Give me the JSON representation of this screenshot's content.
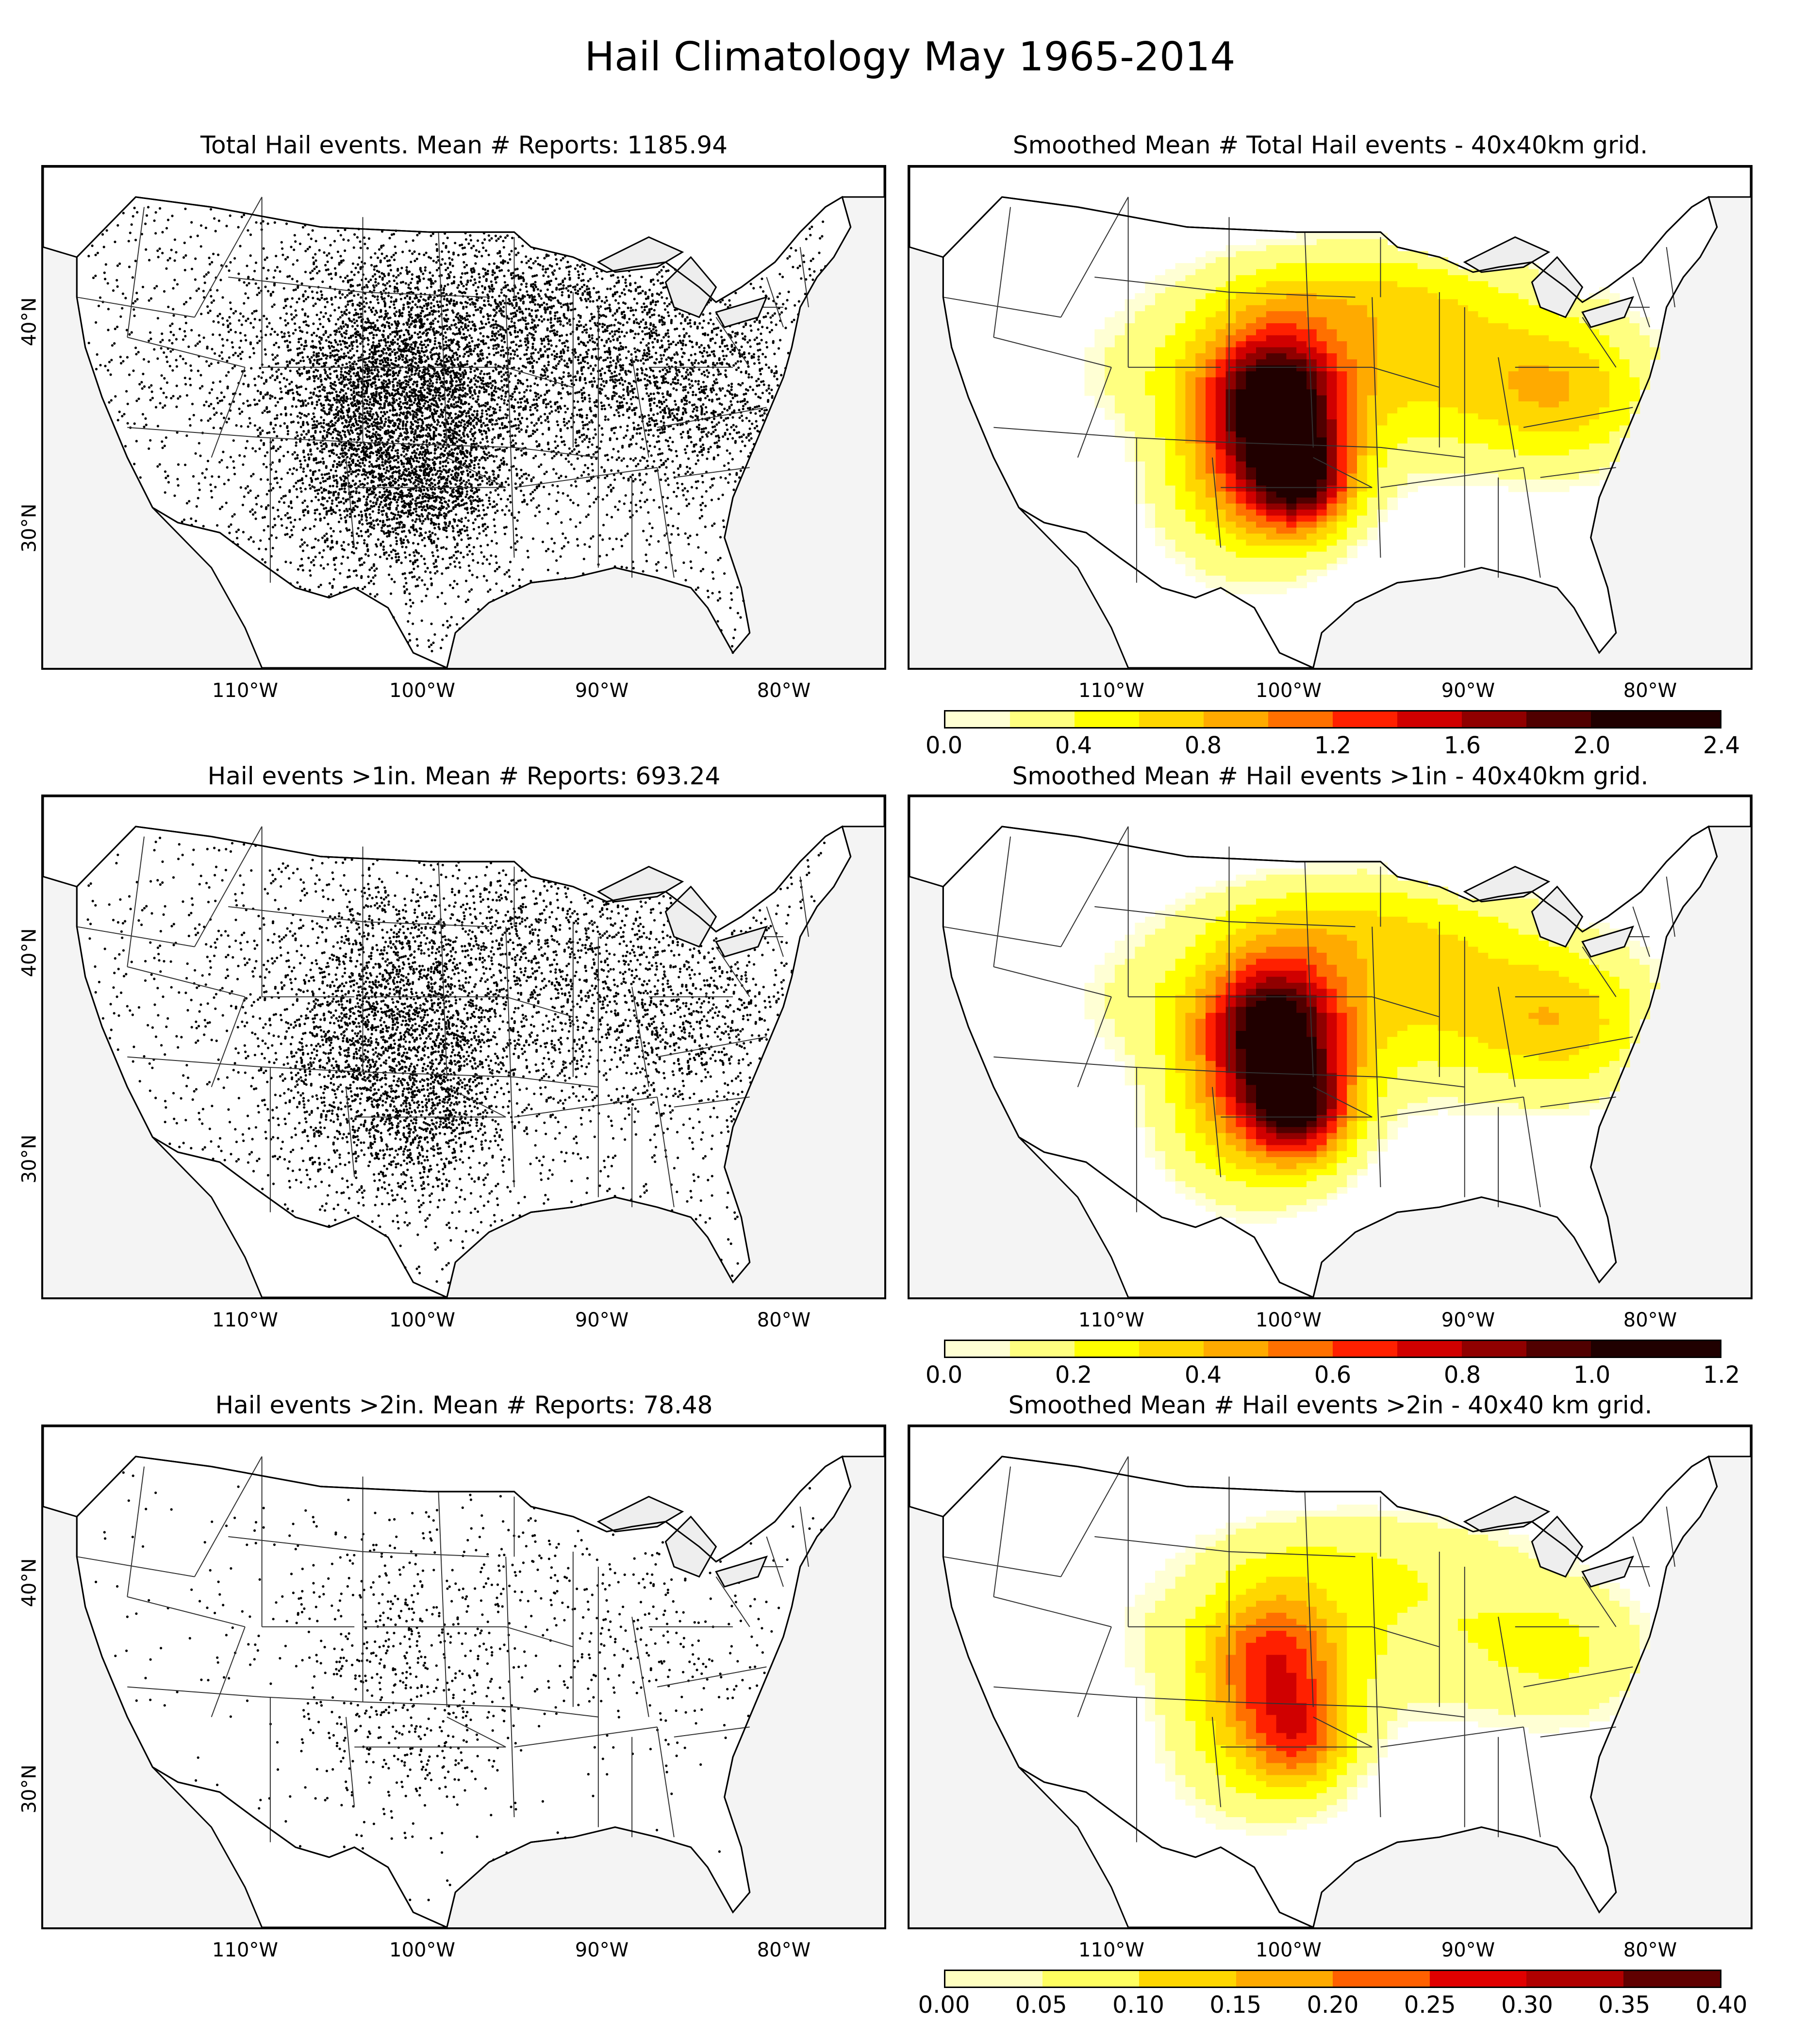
{
  "title": "Hail Climatology May 1965-2014",
  "lat_labels": [
    "40°N",
    "30°N"
  ],
  "lon_labels": [
    "110°W",
    "100°W",
    "90°W",
    "80°W"
  ],
  "panels": [
    {
      "title": "Total Hail events. Mean # Reports: 1185.94",
      "kind": "points",
      "density": 1.0
    },
    {
      "title": "Smoothed Mean # Total Hail events - 40x40km grid.",
      "kind": "smooth",
      "intensity": 1.0
    },
    {
      "title": "Hail events >1in. Mean # Reports: 693.24",
      "kind": "points",
      "density": 0.62
    },
    {
      "title": "Smoothed Mean # Hail events >1in - 40x40km grid.",
      "kind": "smooth",
      "intensity": 0.95
    },
    {
      "title": "Hail events >2in. Mean # Reports: 78.48",
      "kind": "points",
      "density": 0.12
    },
    {
      "title": "Smoothed Mean # Hail events >2in - 40x40 km grid.",
      "kind": "smooth",
      "intensity": 0.55
    }
  ],
  "colorbars": [
    {
      "ticks": [
        "0.0",
        "0.4",
        "0.8",
        "1.2",
        "1.6",
        "2.0",
        "2.4"
      ],
      "range": [
        0,
        2.4
      ]
    },
    {
      "ticks": [
        "0.0",
        "0.2",
        "0.4",
        "0.6",
        "0.8",
        "1.0",
        "1.2"
      ],
      "range": [
        0,
        1.2
      ]
    },
    {
      "ticks": [
        "0.00",
        "0.05",
        "0.10",
        "0.15",
        "0.20",
        "0.25",
        "0.30",
        "0.35",
        "0.40"
      ],
      "range": [
        0,
        0.4
      ]
    }
  ],
  "colors": {
    "scale": [
      "#ffffd4",
      "#ffff80",
      "#ffff00",
      "#ffd700",
      "#ffaa00",
      "#ff7000",
      "#ff2000",
      "#d00000",
      "#900000",
      "#500000",
      "#200000"
    ],
    "ocean": "#f4f4f4",
    "land": "#ffffff",
    "lakes": "#eeeeee"
  }
}
